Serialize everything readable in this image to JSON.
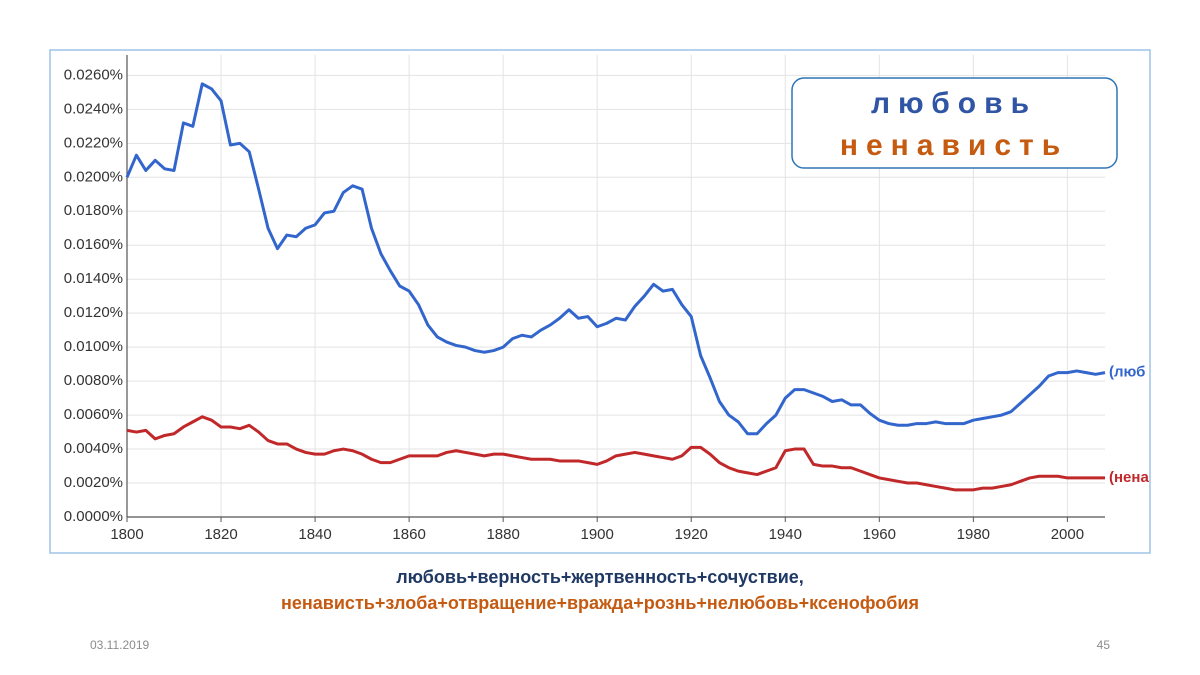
{
  "chart_data": {
    "type": "line",
    "x": [
      1800,
      1802,
      1804,
      1806,
      1808,
      1810,
      1812,
      1814,
      1816,
      1818,
      1820,
      1822,
      1824,
      1826,
      1828,
      1830,
      1832,
      1834,
      1836,
      1838,
      1840,
      1842,
      1844,
      1846,
      1848,
      1850,
      1852,
      1854,
      1856,
      1858,
      1860,
      1862,
      1864,
      1866,
      1868,
      1870,
      1872,
      1874,
      1876,
      1878,
      1880,
      1882,
      1884,
      1886,
      1888,
      1890,
      1892,
      1894,
      1896,
      1898,
      1900,
      1902,
      1904,
      1906,
      1908,
      1910,
      1912,
      1914,
      1916,
      1918,
      1920,
      1922,
      1924,
      1926,
      1928,
      1930,
      1932,
      1934,
      1936,
      1938,
      1940,
      1942,
      1944,
      1946,
      1948,
      1950,
      1952,
      1954,
      1956,
      1958,
      1960,
      1962,
      1964,
      1966,
      1968,
      1970,
      1972,
      1974,
      1976,
      1978,
      1980,
      1982,
      1984,
      1986,
      1988,
      1990,
      1992,
      1994,
      1996,
      1998,
      2000,
      2002,
      2004,
      2006,
      2008
    ],
    "series": [
      {
        "name": "(люб",
        "color": "#3366cc",
        "values": [
          0.02,
          0.0213,
          0.0204,
          0.021,
          0.0205,
          0.0204,
          0.0232,
          0.023,
          0.0255,
          0.0252,
          0.0245,
          0.0219,
          0.022,
          0.0215,
          0.0193,
          0.017,
          0.0158,
          0.0166,
          0.0165,
          0.017,
          0.0172,
          0.0179,
          0.018,
          0.0191,
          0.0195,
          0.0193,
          0.017,
          0.0155,
          0.0145,
          0.0136,
          0.0133,
          0.0125,
          0.0113,
          0.0106,
          0.0103,
          0.0101,
          0.01,
          0.0098,
          0.0097,
          0.0098,
          0.01,
          0.0105,
          0.0107,
          0.0106,
          0.011,
          0.0113,
          0.0117,
          0.0122,
          0.0117,
          0.0118,
          0.0112,
          0.0114,
          0.0117,
          0.0116,
          0.0124,
          0.013,
          0.0137,
          0.0133,
          0.0134,
          0.0125,
          0.0118,
          0.0095,
          0.0082,
          0.0068,
          0.006,
          0.0056,
          0.0049,
          0.0049,
          0.0055,
          0.006,
          0.007,
          0.0075,
          0.0075,
          0.0073,
          0.0071,
          0.0068,
          0.0069,
          0.0066,
          0.0066,
          0.0061,
          0.0057,
          0.0055,
          0.0054,
          0.0054,
          0.0055,
          0.0055,
          0.0056,
          0.0055,
          0.0055,
          0.0055,
          0.0057,
          0.0058,
          0.0059,
          0.006,
          0.0062,
          0.0067,
          0.0072,
          0.0077,
          0.0083,
          0.0085,
          0.0085,
          0.0086,
          0.0085,
          0.0084,
          0.0085
        ]
      },
      {
        "name": "(нена",
        "color": "#c0282a",
        "values": [
          0.0051,
          0.005,
          0.0051,
          0.0046,
          0.0048,
          0.0049,
          0.0053,
          0.0056,
          0.0059,
          0.0057,
          0.0053,
          0.0053,
          0.0052,
          0.0054,
          0.005,
          0.0045,
          0.0043,
          0.0043,
          0.004,
          0.0038,
          0.0037,
          0.0037,
          0.0039,
          0.004,
          0.0039,
          0.0037,
          0.0034,
          0.0032,
          0.0032,
          0.0034,
          0.0036,
          0.0036,
          0.0036,
          0.0036,
          0.0038,
          0.0039,
          0.0038,
          0.0037,
          0.0036,
          0.0037,
          0.0037,
          0.0036,
          0.0035,
          0.0034,
          0.0034,
          0.0034,
          0.0033,
          0.0033,
          0.0033,
          0.0032,
          0.0031,
          0.0033,
          0.0036,
          0.0037,
          0.0038,
          0.0037,
          0.0036,
          0.0035,
          0.0034,
          0.0036,
          0.0041,
          0.0041,
          0.0037,
          0.0032,
          0.0029,
          0.0027,
          0.0026,
          0.0025,
          0.0027,
          0.0029,
          0.0039,
          0.004,
          0.004,
          0.0031,
          0.003,
          0.003,
          0.0029,
          0.0029,
          0.0027,
          0.0025,
          0.0023,
          0.0022,
          0.0021,
          0.002,
          0.002,
          0.0019,
          0.0018,
          0.0017,
          0.0016,
          0.0016,
          0.0016,
          0.0017,
          0.0017,
          0.0018,
          0.0019,
          0.0021,
          0.0023,
          0.0024,
          0.0024,
          0.0024,
          0.0023,
          0.0023,
          0.0023,
          0.0023,
          0.0023
        ]
      }
    ],
    "xlim": [
      1800,
      2008
    ],
    "xticks": [
      1800,
      1820,
      1840,
      1860,
      1880,
      1900,
      1920,
      1940,
      1960,
      1980,
      2000
    ],
    "ylim": [
      0,
      0.0272
    ],
    "yticks": [
      {
        "value": 0,
        "label": "0.0000%"
      },
      {
        "value": 0.002,
        "label": "0.0020%"
      },
      {
        "value": 0.004,
        "label": "0.0040%"
      },
      {
        "value": 0.006,
        "label": "0.0060%"
      },
      {
        "value": 0.008,
        "label": "0.0080%"
      },
      {
        "value": 0.01,
        "label": "0.0100%"
      },
      {
        "value": 0.012,
        "label": "0.0120%"
      },
      {
        "value": 0.014,
        "label": "0.0140%"
      },
      {
        "value": 0.016,
        "label": "0.0160%"
      },
      {
        "value": 0.018,
        "label": "0.0180%"
      },
      {
        "value": 0.02,
        "label": "0.0200%"
      },
      {
        "value": 0.022,
        "label": "0.0220%"
      },
      {
        "value": 0.024,
        "label": "0.0240%"
      },
      {
        "value": 0.026,
        "label": "0.0260%"
      }
    ],
    "grid": true
  },
  "slide": {
    "box": [
      "любовь",
      "ненависть"
    ],
    "caption": [
      "любовь+верность+жертвенность+сочуствие,",
      "ненависть+злоба+отвращение+вражда+рознь+нелюбовь+ксенофобия"
    ],
    "date": "03.11.2019",
    "page": "45"
  }
}
